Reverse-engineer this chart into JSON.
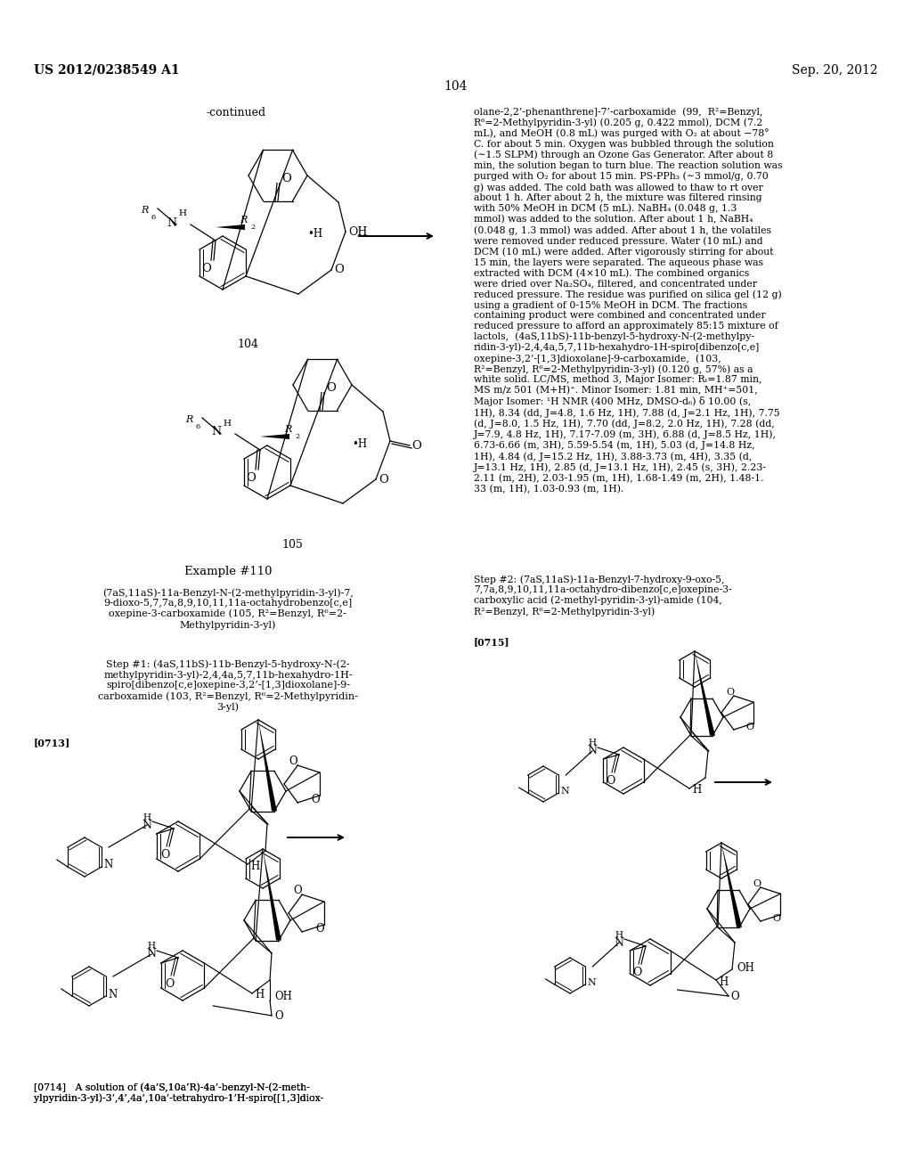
{
  "bg": "#ffffff",
  "header_left": "US 2012/0238549 A1",
  "header_right": "Sep. 20, 2012",
  "page_num": "104",
  "right_col_para1": "olane-2,2’-phenanthrene]-7’-carboxamide  (99,  R²=Benzyl,\nR⁶=2-Methylpyridin-3-yl) (0.205 g, 0.422 mmol), DCM (7.2\nmL), and MeOH (0.8 mL) was purged with O₂ at about −78°\nC. for about 5 min. Oxygen was bubbled through the solution\n(∼1.5 SLPM) through an Ozone Gas Generator. After about 8\nmin, the solution began to turn blue. The reaction solution was\npurged with O₂ for about 15 min. PS-PPh₃ (∼3 mmol/g, 0.70\ng) was added. The cold bath was allowed to thaw to rt over\nabout 1 h. After about 2 h, the mixture was filtered rinsing\nwith 50% MeOH in DCM (5 mL). NaBH₄ (0.048 g, 1.3\nmmol) was added to the solution. After about 1 h, NaBH₄\n(0.048 g, 1.3 mmol) was added. After about 1 h, the volatiles\nwere removed under reduced pressure. Water (10 mL) and\nDCM (10 mL) were added. After vigorously stirring for about\n15 min, the layers were separated. The aqueous phase was\nextracted with DCM (4×10 mL). The combined organics\nwere dried over Na₂SO₄, filtered, and concentrated under\nreduced pressure. The residue was purified on silica gel (12 g)\nusing a gradient of 0-15% MeOH in DCM. The fractions\ncontaining product were combined and concentrated under\nreduced pressure to afford an approximately 85:15 mixture of\nlactols,  (4aS,11bS)-11b-benzyl-5-hydroxy-N-(2-methylpy-\nridin-3-yl)-2,4,4a,5,7,11b-hexahydro-1H-spiro[dibenzo[c,e]\noxepine-3,2’-[1,3]dioxolane]-9-carboxamide,  (103,\nR²=Benzyl, R⁶=2-Methylpyridin-3-yl) (0.120 g, 57%) as a\nwhite solid. LC/MS, method 3, Major Isomer: Rₜ=1.87 min,\nMS m/z 501 (M+H)⁺. Minor Isomer: 1.81 min, MH⁺=501,\nMajor Isomer: ¹H NMR (400 MHz, DMSO-d₆) δ 10.00 (s,\n1H), 8.34 (dd, J=4.8, 1.6 Hz, 1H), 7.88 (d, J=2.1 Hz, 1H), 7.75\n(d, J=8.0, 1.5 Hz, 1H), 7.70 (dd, J=8.2, 2.0 Hz, 1H), 7.28 (dd,\nJ=7.9, 4.8 Hz, 1H), 7.17-7.09 (m, 3H), 6.88 (d, J=8.5 Hz, 1H),\n6.73-6.66 (m, 3H), 5.59-5.54 (m, 1H), 5.03 (d, J=14.8 Hz,\n1H), 4.84 (d, J=15.2 Hz, 1H), 3.88-3.73 (m, 4H), 3.35 (d,\nJ=13.1 Hz, 1H), 2.85 (d, J=13.1 Hz, 1H), 2.45 (s, 3H), 2.23-\n2.11 (m, 2H), 2.03-1.95 (m, 1H), 1.68-1.49 (m, 2H), 1.48-1.\n33 (m, 1H), 1.03-0.93 (m, 1H).",
  "right_col_step2_head": "Step #2: (7aS,11aS)-11a-Benzyl-7-hydroxy-9-oxo-5,\n7,7a,8,9,10,11,11a-octahydro-dibenzo[c,e]oxepine-3-\ncarboxylic acid (2-methyl-pyridin-3-yl)-amide (104,\nR²=Benzyl, R⁶=2-Methylpyridin-3-yl)",
  "left_example": "Example #110",
  "left_name": "(7aS,11aS)-11a-Benzyl-N-(2-methylpyridin-3-yl)-7,\n9-dioxo-5,7,7a,8,9,10,11,11a-octahydrobenzo[c,e]\noxepine-3-carboxamide (105, R²=Benzyl, R⁶=2-\nMethylpyridin-3-yl)",
  "left_step1": "Step #1: (4aS,11bS)-11b-Benzyl-5-hydroxy-N-(2-\nmethylpyridin-3-yl)-2,4,4a,5,7,11b-hexahydro-1H-\nspiro[dibenzo[c,e]oxepine-3,2’-[1,3]dioxolane]-9-\ncarboxamide (103, R²=Benzyl, R⁶=2-Methylpyridin-\n3-yl)",
  "para0713": "[0713]",
  "para0714": "[0714]   A solution of (4a’S,10a’R)-4a’-benzyl-N-(2-meth-\nylpyridin-3-yl)-3’,4’,4a’,10a’-tetrahydro-1’H-spiro[[1,3]diox-",
  "para0715": "[0715]"
}
